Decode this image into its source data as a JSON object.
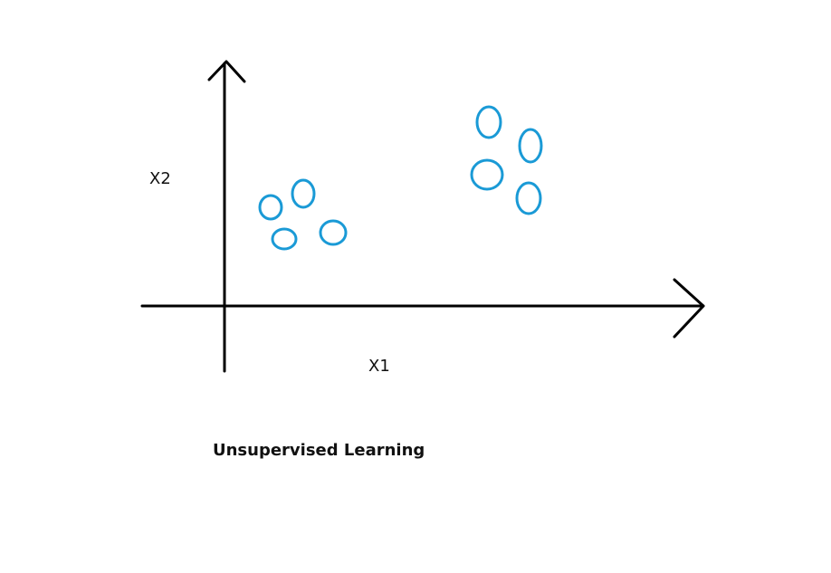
{
  "labels": {
    "y_axis": "X2",
    "x_axis": "X1",
    "caption": "Unsupervised Learning"
  },
  "colors": {
    "axis": "#000000",
    "points": "#1a9ad6",
    "text": "#111111",
    "background": "#ffffff"
  },
  "diagram": {
    "type": "scatter",
    "point_marker": "hollow ellipse",
    "cluster_count": 2,
    "clusters": [
      {
        "point_count": 4
      },
      {
        "point_count": 4
      }
    ]
  }
}
